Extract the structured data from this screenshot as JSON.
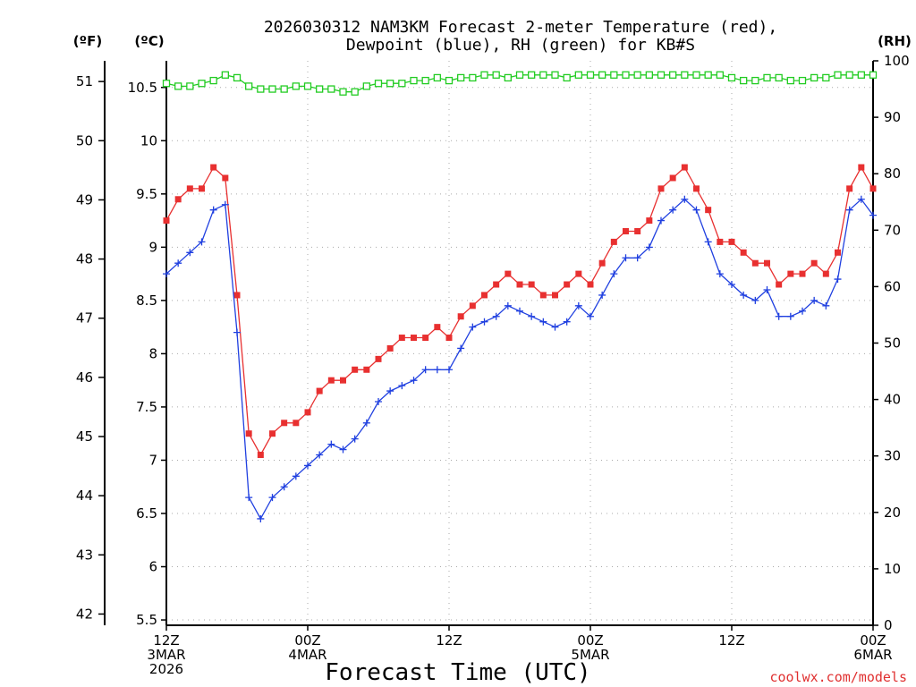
{
  "chart_data": {
    "type": "line",
    "title_line1": "2026030312 NAM3KM Forecast 2-meter Temperature (red),",
    "title_line2": "Dewpoint (blue), RH (green) for KB#S",
    "xlabel": "Forecast Time (UTC)",
    "credit": "coolwx.com/models",
    "units": {
      "fahrenheit": "(ºF)",
      "celsius": "(ºC)",
      "rh": "(RH)"
    },
    "ylim_celsius": [
      5.45,
      10.75
    ],
    "ylim_rh": [
      0,
      100
    ],
    "celsius_ticks": [
      "5.5",
      "6",
      "6.5",
      "7",
      "7.5",
      "8",
      "8.5",
      "9",
      "9.5",
      "10",
      "10.5"
    ],
    "fahrenheit_ticks": [
      "42",
      "43",
      "44",
      "45",
      "46",
      "47",
      "48",
      "49",
      "50",
      "51"
    ],
    "rh_ticks": [
      "0",
      "10",
      "20",
      "30",
      "40",
      "50",
      "60",
      "70",
      "80",
      "90",
      "100"
    ],
    "x_ticks": [
      {
        "hour": 0,
        "line1": "12Z",
        "line2": "3MAR",
        "line3": "2026"
      },
      {
        "hour": 12,
        "line1": "00Z",
        "line2": "4MAR",
        "line3": ""
      },
      {
        "hour": 24,
        "line1": "12Z",
        "line2": "",
        "line3": ""
      },
      {
        "hour": 36,
        "line1": "00Z",
        "line2": "5MAR",
        "line3": ""
      },
      {
        "hour": 48,
        "line1": "12Z",
        "line2": "",
        "line3": ""
      },
      {
        "hour": 60,
        "line1": "00Z",
        "line2": "6MAR",
        "line3": ""
      }
    ],
    "x_hours_max": 60,
    "series": [
      {
        "name": "Temperature",
        "color": "#e83030",
        "marker": "filled-square",
        "axis": "celsius",
        "values": [
          9.25,
          9.45,
          9.55,
          9.55,
          9.75,
          9.65,
          8.55,
          7.25,
          7.05,
          7.25,
          7.35,
          7.35,
          7.45,
          7.65,
          7.75,
          7.75,
          7.85,
          7.85,
          7.95,
          8.05,
          8.15,
          8.15,
          8.15,
          8.25,
          8.15,
          8.35,
          8.45,
          8.55,
          8.65,
          8.75,
          8.65,
          8.65,
          8.55,
          8.55,
          8.65,
          8.75,
          8.65,
          8.85,
          9.05,
          9.15,
          9.15,
          9.25,
          9.55,
          9.65,
          9.75,
          9.55,
          9.35,
          9.05,
          9.05,
          8.95,
          8.85,
          8.85,
          8.65,
          8.75,
          8.75,
          8.85,
          8.75,
          8.95,
          9.55,
          9.75,
          9.55
        ]
      },
      {
        "name": "Dewpoint",
        "color": "#2040e0",
        "marker": "plus",
        "axis": "celsius",
        "values": [
          8.75,
          8.85,
          8.95,
          9.05,
          9.35,
          9.4,
          8.2,
          6.65,
          6.45,
          6.65,
          6.75,
          6.85,
          6.95,
          7.05,
          7.15,
          7.1,
          7.2,
          7.35,
          7.55,
          7.65,
          7.7,
          7.75,
          7.85,
          7.85,
          7.85,
          8.05,
          8.25,
          8.3,
          8.35,
          8.45,
          8.4,
          8.35,
          8.3,
          8.25,
          8.3,
          8.45,
          8.35,
          8.55,
          8.75,
          8.9,
          8.9,
          9.0,
          9.25,
          9.35,
          9.45,
          9.35,
          9.05,
          8.75,
          8.65,
          8.55,
          8.5,
          8.6,
          8.35,
          8.35,
          8.4,
          8.5,
          8.45,
          8.7,
          9.35,
          9.45,
          9.3
        ]
      },
      {
        "name": "RH",
        "color": "#22cc22",
        "marker": "open-square",
        "axis": "rh",
        "values": [
          96,
          95.5,
          95.5,
          96,
          96.5,
          97.5,
          97,
          95.5,
          95,
          95,
          95,
          95.5,
          95.5,
          95,
          95,
          94.5,
          94.5,
          95.5,
          96,
          96,
          96,
          96.5,
          96.5,
          97,
          96.5,
          97,
          97,
          97.5,
          97.5,
          97,
          97.5,
          97.5,
          97.5,
          97.5,
          97,
          97.5,
          97.5,
          97.5,
          97.5,
          97.5,
          97.5,
          97.5,
          97.5,
          97.5,
          97.5,
          97.5,
          97.5,
          97.5,
          97,
          96.5,
          96.5,
          97,
          97,
          96.5,
          96.5,
          97,
          97,
          97.5,
          97.5,
          97.5,
          97.5
        ]
      }
    ]
  }
}
